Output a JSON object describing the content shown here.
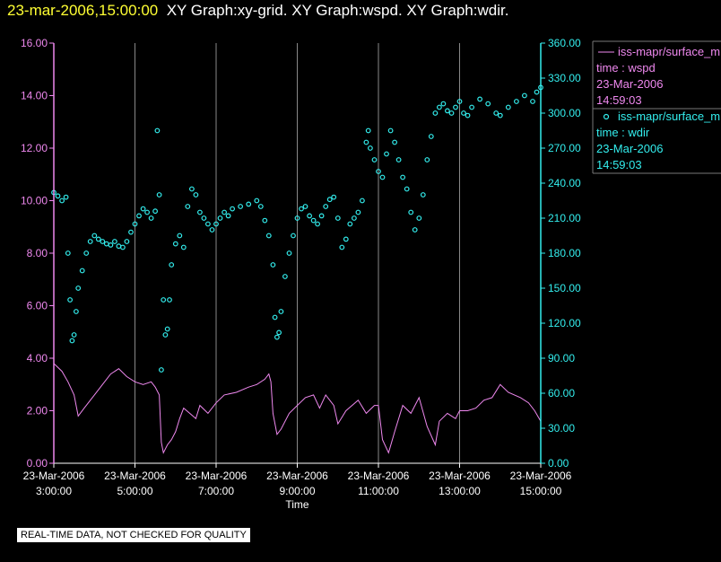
{
  "header": {
    "datetime": "23-mar-2006,15:00:00",
    "graph_titles": "XY Graph:xy-grid.  XY Graph:wspd.  XY Graph:wdir."
  },
  "colors": {
    "wspd": "#ee88ee",
    "wdir": "#33eeee",
    "axis": "#ffffff",
    "grid": "#888888",
    "header_date": "#ffff33"
  },
  "legend": [
    {
      "series": "iss-mapr/surface_m",
      "marker": "line",
      "line1": "time : wspd",
      "line2": "23-Mar-2006",
      "line3": "14:59:03"
    },
    {
      "series": "iss-mapr/surface_m",
      "marker": "circle",
      "line1": "time : wdir",
      "line2": "23-Mar-2006",
      "line3": "14:59:03"
    }
  ],
  "notice": "REAL-TIME DATA, NOT CHECKED FOR QUALITY",
  "chart_data": {
    "type": "line",
    "xlabel": "Time",
    "x_ticks": [
      {
        "date": "23-Mar-2006",
        "time": "3:00:00",
        "hour": 3
      },
      {
        "date": "23-Mar-2006",
        "time": "5:00:00",
        "hour": 5
      },
      {
        "date": "23-Mar-2006",
        "time": "7:00:00",
        "hour": 7
      },
      {
        "date": "23-Mar-2006",
        "time": "9:00:00",
        "hour": 9
      },
      {
        "date": "23-Mar-2006",
        "time": "11:00:00",
        "hour": 11
      },
      {
        "date": "23-Mar-2006",
        "time": "13:00:00",
        "hour": 13
      },
      {
        "date": "23-Mar-2006",
        "time": "15:00:00",
        "hour": 15
      }
    ],
    "xlim": [
      3,
      15
    ],
    "left_axis": {
      "ylim": [
        0,
        16
      ],
      "ticks": [
        "0.00",
        "2.00",
        "4.00",
        "6.00",
        "8.00",
        "10.00",
        "12.00",
        "14.00",
        "16.00"
      ]
    },
    "right_axis": {
      "ylim": [
        0,
        360
      ],
      "ticks": [
        "0.00",
        "30.00",
        "60.00",
        "90.00",
        "120.00",
        "150.00",
        "180.00",
        "210.00",
        "240.00",
        "270.00",
        "300.00",
        "330.00",
        "360.00"
      ]
    },
    "grid": "vertical lines at each x tick",
    "series": [
      {
        "id": "wspd",
        "style": "line",
        "axis": "left",
        "points": [
          [
            3.0,
            3.8
          ],
          [
            3.2,
            3.5
          ],
          [
            3.35,
            3.1
          ],
          [
            3.5,
            2.6
          ],
          [
            3.6,
            1.8
          ],
          [
            3.75,
            2.1
          ],
          [
            4.0,
            2.6
          ],
          [
            4.2,
            3.0
          ],
          [
            4.4,
            3.4
          ],
          [
            4.6,
            3.6
          ],
          [
            4.8,
            3.3
          ],
          [
            5.0,
            3.1
          ],
          [
            5.2,
            3.0
          ],
          [
            5.4,
            3.1
          ],
          [
            5.5,
            2.9
          ],
          [
            5.6,
            2.6
          ],
          [
            5.65,
            0.8
          ],
          [
            5.7,
            0.4
          ],
          [
            5.8,
            0.7
          ],
          [
            5.9,
            0.9
          ],
          [
            6.0,
            1.2
          ],
          [
            6.1,
            1.7
          ],
          [
            6.2,
            2.1
          ],
          [
            6.35,
            1.9
          ],
          [
            6.5,
            1.7
          ],
          [
            6.6,
            2.2
          ],
          [
            6.8,
            1.9
          ],
          [
            7.0,
            2.3
          ],
          [
            7.2,
            2.6
          ],
          [
            7.5,
            2.7
          ],
          [
            7.8,
            2.9
          ],
          [
            8.0,
            3.0
          ],
          [
            8.2,
            3.2
          ],
          [
            8.3,
            3.4
          ],
          [
            8.35,
            3.1
          ],
          [
            8.4,
            1.9
          ],
          [
            8.5,
            1.1
          ],
          [
            8.6,
            1.3
          ],
          [
            8.8,
            1.9
          ],
          [
            9.0,
            2.2
          ],
          [
            9.2,
            2.5
          ],
          [
            9.4,
            2.6
          ],
          [
            9.55,
            2.1
          ],
          [
            9.7,
            2.6
          ],
          [
            9.9,
            2.2
          ],
          [
            10.0,
            1.5
          ],
          [
            10.2,
            2.0
          ],
          [
            10.5,
            2.4
          ],
          [
            10.7,
            1.9
          ],
          [
            10.9,
            2.2
          ],
          [
            11.0,
            2.2
          ],
          [
            11.1,
            0.9
          ],
          [
            11.25,
            0.4
          ],
          [
            11.4,
            1.2
          ],
          [
            11.6,
            2.2
          ],
          [
            11.8,
            1.9
          ],
          [
            12.0,
            2.5
          ],
          [
            12.2,
            1.4
          ],
          [
            12.4,
            0.7
          ],
          [
            12.5,
            1.6
          ],
          [
            12.7,
            1.9
          ],
          [
            12.9,
            1.7
          ],
          [
            13.0,
            2.0
          ],
          [
            13.2,
            2.0
          ],
          [
            13.4,
            2.1
          ],
          [
            13.6,
            2.4
          ],
          [
            13.8,
            2.5
          ],
          [
            14.0,
            3.0
          ],
          [
            14.2,
            2.7
          ],
          [
            14.5,
            2.5
          ],
          [
            14.7,
            2.3
          ],
          [
            14.85,
            2.0
          ],
          [
            15.0,
            1.6
          ]
        ]
      },
      {
        "id": "wdir",
        "style": "circle-markers",
        "axis": "right",
        "points": [
          [
            3.0,
            232
          ],
          [
            3.1,
            229
          ],
          [
            3.2,
            225
          ],
          [
            3.3,
            228
          ],
          [
            3.35,
            180
          ],
          [
            3.4,
            140
          ],
          [
            3.45,
            105
          ],
          [
            3.5,
            110
          ],
          [
            3.55,
            130
          ],
          [
            3.6,
            150
          ],
          [
            3.7,
            165
          ],
          [
            3.8,
            180
          ],
          [
            3.9,
            190
          ],
          [
            4.0,
            195
          ],
          [
            4.1,
            192
          ],
          [
            4.2,
            190
          ],
          [
            4.3,
            188
          ],
          [
            4.4,
            187
          ],
          [
            4.5,
            190
          ],
          [
            4.6,
            186
          ],
          [
            4.7,
            185
          ],
          [
            4.8,
            190
          ],
          [
            4.9,
            198
          ],
          [
            5.0,
            205
          ],
          [
            5.1,
            212
          ],
          [
            5.2,
            218
          ],
          [
            5.3,
            215
          ],
          [
            5.4,
            210
          ],
          [
            5.5,
            216
          ],
          [
            5.55,
            285
          ],
          [
            5.6,
            230
          ],
          [
            5.65,
            80
          ],
          [
            5.7,
            140
          ],
          [
            5.75,
            110
          ],
          [
            5.8,
            115
          ],
          [
            5.85,
            140
          ],
          [
            5.9,
            170
          ],
          [
            6.0,
            188
          ],
          [
            6.1,
            195
          ],
          [
            6.2,
            185
          ],
          [
            6.3,
            220
          ],
          [
            6.4,
            235
          ],
          [
            6.5,
            230
          ],
          [
            6.6,
            215
          ],
          [
            6.7,
            210
          ],
          [
            6.8,
            205
          ],
          [
            6.9,
            200
          ],
          [
            7.0,
            205
          ],
          [
            7.1,
            210
          ],
          [
            7.2,
            215
          ],
          [
            7.3,
            212
          ],
          [
            7.4,
            218
          ],
          [
            7.6,
            220
          ],
          [
            7.8,
            222
          ],
          [
            8.0,
            225
          ],
          [
            8.1,
            220
          ],
          [
            8.2,
            208
          ],
          [
            8.3,
            195
          ],
          [
            8.4,
            170
          ],
          [
            8.45,
            125
          ],
          [
            8.5,
            108
          ],
          [
            8.55,
            112
          ],
          [
            8.6,
            130
          ],
          [
            8.7,
            160
          ],
          [
            8.8,
            180
          ],
          [
            8.9,
            195
          ],
          [
            9.0,
            210
          ],
          [
            9.1,
            218
          ],
          [
            9.2,
            220
          ],
          [
            9.3,
            212
          ],
          [
            9.4,
            208
          ],
          [
            9.5,
            205
          ],
          [
            9.6,
            212
          ],
          [
            9.7,
            220
          ],
          [
            9.8,
            226
          ],
          [
            9.9,
            228
          ],
          [
            10.0,
            210
          ],
          [
            10.1,
            185
          ],
          [
            10.2,
            192
          ],
          [
            10.3,
            205
          ],
          [
            10.4,
            210
          ],
          [
            10.5,
            215
          ],
          [
            10.6,
            225
          ],
          [
            10.7,
            275
          ],
          [
            10.75,
            285
          ],
          [
            10.8,
            270
          ],
          [
            10.9,
            260
          ],
          [
            11.0,
            250
          ],
          [
            11.1,
            245
          ],
          [
            11.2,
            265
          ],
          [
            11.3,
            285
          ],
          [
            11.4,
            275
          ],
          [
            11.5,
            260
          ],
          [
            11.6,
            245
          ],
          [
            11.7,
            235
          ],
          [
            11.8,
            215
          ],
          [
            11.9,
            200
          ],
          [
            12.0,
            210
          ],
          [
            12.1,
            230
          ],
          [
            12.2,
            260
          ],
          [
            12.3,
            280
          ],
          [
            12.4,
            300
          ],
          [
            12.5,
            305
          ],
          [
            12.6,
            308
          ],
          [
            12.7,
            302
          ],
          [
            12.8,
            300
          ],
          [
            12.9,
            305
          ],
          [
            13.0,
            310
          ],
          [
            13.1,
            300
          ],
          [
            13.2,
            298
          ],
          [
            13.3,
            305
          ],
          [
            13.5,
            312
          ],
          [
            13.7,
            308
          ],
          [
            13.9,
            300
          ],
          [
            14.0,
            298
          ],
          [
            14.2,
            305
          ],
          [
            14.4,
            310
          ],
          [
            14.6,
            315
          ],
          [
            14.8,
            310
          ],
          [
            14.9,
            318
          ],
          [
            15.0,
            322
          ]
        ]
      }
    ]
  }
}
